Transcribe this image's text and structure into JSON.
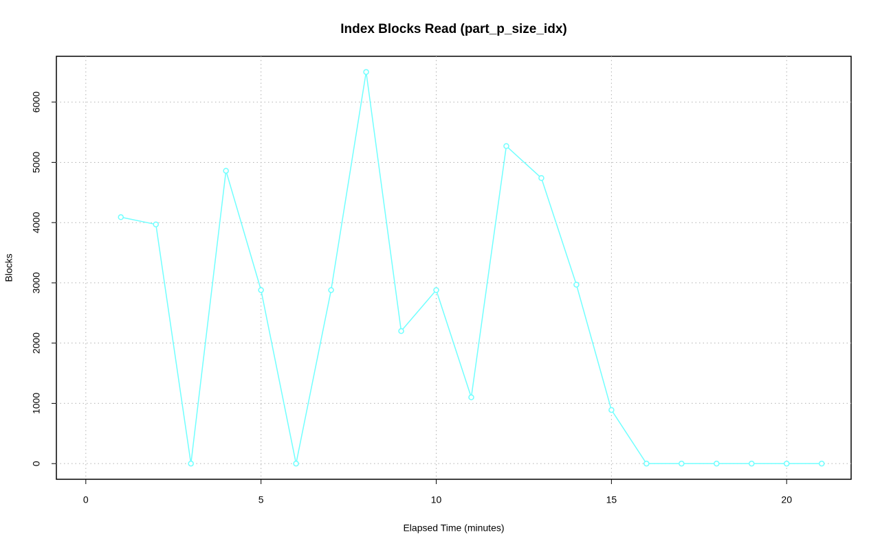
{
  "chart_data": {
    "type": "line",
    "title": "Index Blocks Read (part_p_size_idx)",
    "x_label": "Elapsed Time (minutes)",
    "y_label": "Blocks",
    "x": [
      1,
      2,
      3,
      4,
      5,
      6,
      7,
      8,
      9,
      10,
      11,
      12,
      13,
      14,
      15,
      16,
      17,
      18,
      19,
      20,
      21
    ],
    "series": [
      {
        "name": "part_p_size_idx",
        "color": "#70ffff",
        "values": [
          4090,
          3970,
          0,
          4860,
          2880,
          0,
          2880,
          6500,
          2200,
          2880,
          1100,
          5270,
          4740,
          2970,
          890,
          0,
          0,
          0,
          0,
          0,
          0
        ]
      }
    ],
    "xlim": [
      -0.84,
      21.84
    ],
    "xticks": [
      0,
      5,
      10,
      15,
      20
    ],
    "ylim": [
      -260,
      6760
    ],
    "yticks": [
      0,
      1000,
      2000,
      3000,
      4000,
      5000,
      6000
    ],
    "grid": true,
    "markers": "open-circle"
  }
}
